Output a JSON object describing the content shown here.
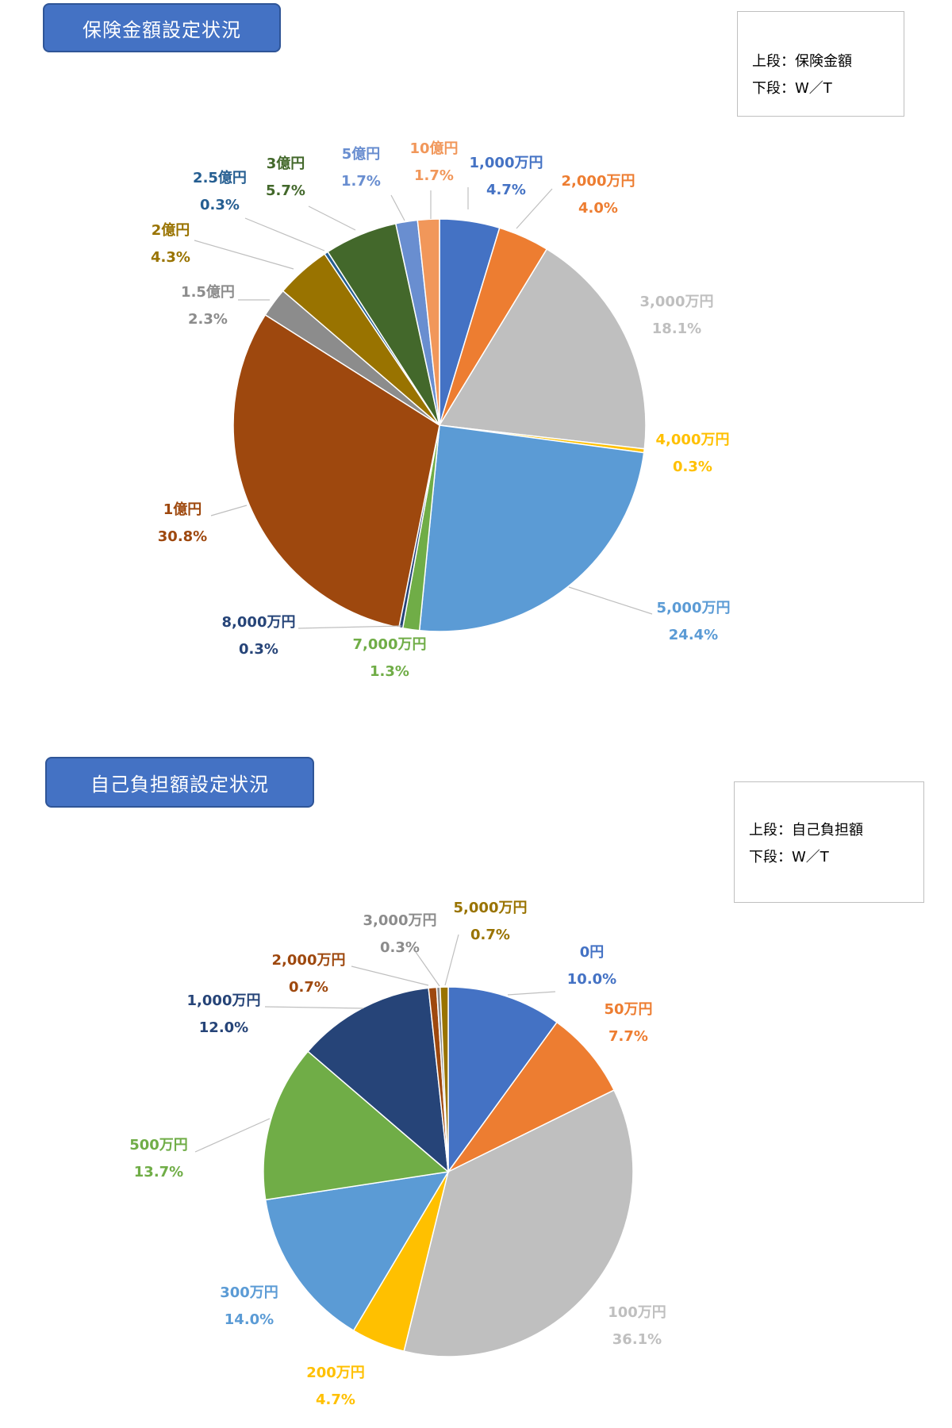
{
  "header1": {
    "title": "保険金額設定状況"
  },
  "legend1": {
    "line1": "上段：保険金額",
    "line2": "下段：W／T"
  },
  "header2": {
    "title": "自己負担額設定状況"
  },
  "legend2": {
    "line1": "上段：自己負担額",
    "line2": "下段：W／T"
  },
  "chart_data": [
    {
      "type": "pie",
      "title": "保険金額設定状況",
      "categories": [
        "1,000万円",
        "2,000万円",
        "3,000万円",
        "4,000万円",
        "5,000万円",
        "7,000万円",
        "8,000万円",
        "1億円",
        "1.5億円",
        "2億円",
        "2.5億円",
        "3億円",
        "5億円",
        "10億円"
      ],
      "values": [
        4.7,
        4.0,
        18.1,
        0.3,
        24.4,
        1.3,
        0.3,
        30.8,
        2.3,
        4.3,
        0.3,
        5.7,
        1.7,
        1.7
      ],
      "value_labels": [
        "4.7%",
        "4.0%",
        "18.1%",
        "0.3%",
        "24.4%",
        "1.3%",
        "0.3%",
        "30.8%",
        "2.3%",
        "4.3%",
        "0.3%",
        "5.7%",
        "1.7%",
        "1.7%"
      ],
      "colors": [
        "#4472c4",
        "#ed7d31",
        "#bfbfbf",
        "#ffc000",
        "#5b9bd5",
        "#70ad47",
        "#264478",
        "#9e480e",
        "#8c8c8c",
        "#997300",
        "#255e91",
        "#43682b",
        "#698ed0",
        "#f1975a"
      ]
    },
    {
      "type": "pie",
      "title": "自己負担額設定状況",
      "categories": [
        "0円",
        "50万円",
        "100万円",
        "200万円",
        "300万円",
        "500万円",
        "1,000万円",
        "2,000万円",
        "3,000万円",
        "5,000万円"
      ],
      "values": [
        10.0,
        7.7,
        36.1,
        4.7,
        14.0,
        13.7,
        12.0,
        0.7,
        0.3,
        0.7
      ],
      "value_labels": [
        "10.0%",
        "7.7%",
        "36.1%",
        "4.7%",
        "14.0%",
        "13.7%",
        "12.0%",
        "0.7%",
        "0.3%",
        "0.7%"
      ],
      "colors": [
        "#4472c4",
        "#ed7d31",
        "#bfbfbf",
        "#ffc000",
        "#5b9bd5",
        "#70ad47",
        "#264478",
        "#9e480e",
        "#8c8c8c",
        "#997300"
      ]
    }
  ]
}
